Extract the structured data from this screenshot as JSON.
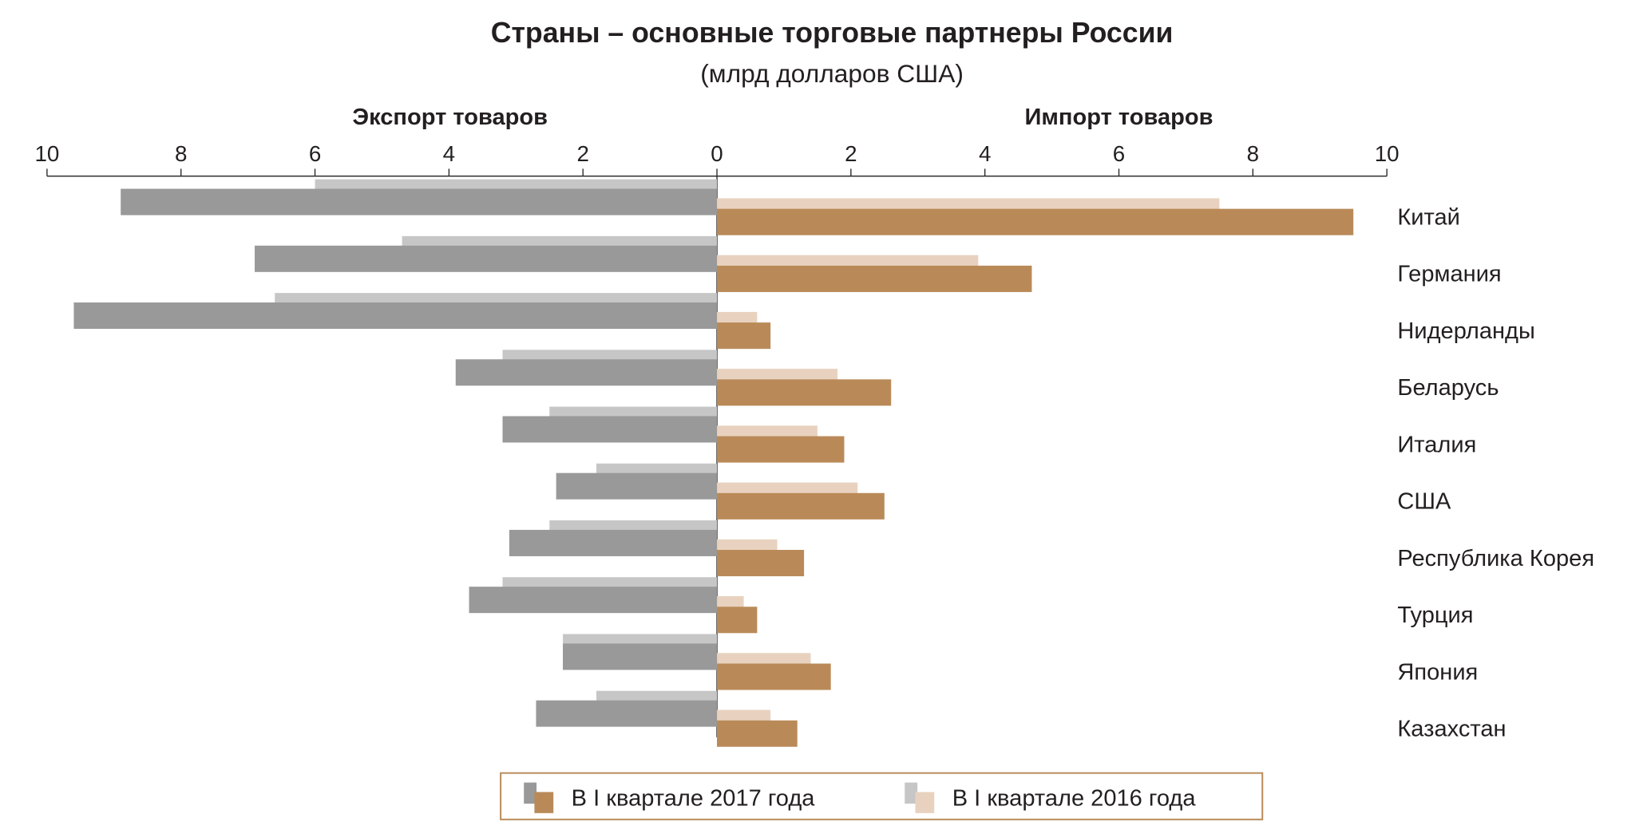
{
  "chart_data": {
    "type": "bar",
    "orientation": "horizontal",
    "title": "Страны – основные торговые партнеры России",
    "subtitle": "(млрд долларов США)",
    "panels": [
      {
        "label": "Экспорт товаров",
        "direction": "left",
        "xlim": [
          0,
          10
        ],
        "ticks": [
          "0",
          "2",
          "4",
          "6",
          "8",
          "10"
        ]
      },
      {
        "label": "Импорт товаров",
        "direction": "right",
        "xlim": [
          0,
          10
        ],
        "ticks": [
          "0",
          "2",
          "4",
          "6",
          "8",
          "10"
        ]
      }
    ],
    "categories": [
      "Китай",
      "Германия",
      "Нидерланды",
      "Беларусь",
      "Италия",
      "США",
      "Республика Корея",
      "Турция",
      "Япония",
      "Казахстан"
    ],
    "series": [
      {
        "name": "В I квартале 2017 года",
        "panel": "export",
        "color": "#989998",
        "values": [
          8.9,
          6.9,
          9.6,
          3.9,
          3.2,
          2.4,
          3.1,
          3.7,
          2.3,
          2.7
        ]
      },
      {
        "name": "В I квартале 2016 года",
        "panel": "export",
        "color": "#c6c6c6",
        "values": [
          6.0,
          4.7,
          6.6,
          3.2,
          2.5,
          1.8,
          2.5,
          3.2,
          2.3,
          1.8
        ]
      },
      {
        "name": "В I квартале 2017 года",
        "panel": "import",
        "color": "#b98a58",
        "values": [
          9.5,
          4.7,
          0.8,
          2.6,
          1.9,
          2.5,
          1.3,
          0.6,
          1.7,
          1.2
        ]
      },
      {
        "name": "В I квартале 2016 года",
        "panel": "import",
        "color": "#e8d2bf",
        "values": [
          7.5,
          3.9,
          0.6,
          1.8,
          1.5,
          2.1,
          0.9,
          0.4,
          1.4,
          0.8
        ]
      }
    ],
    "legend": {
      "placement": "bottom",
      "border_color": "#b98a58",
      "items": [
        "В I квартале 2017 года",
        "В I квартале 2016 года"
      ]
    },
    "grid": false
  }
}
